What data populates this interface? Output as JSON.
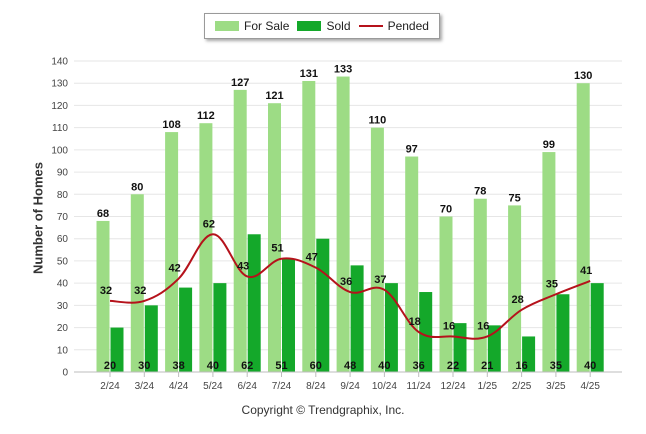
{
  "chart_data": {
    "type": "bar",
    "ylabel": "Number of Homes",
    "ylim": [
      0,
      140
    ],
    "yticks": [
      0,
      10,
      20,
      30,
      40,
      50,
      60,
      70,
      80,
      90,
      100,
      110,
      120,
      130,
      140
    ],
    "categories": [
      "2/24",
      "3/24",
      "4/24",
      "5/24",
      "6/24",
      "7/24",
      "8/24",
      "9/24",
      "10/24",
      "11/24",
      "12/24",
      "1/25",
      "2/25",
      "3/25",
      "4/25"
    ],
    "legend_position": "top-center",
    "grid": true,
    "series": [
      {
        "name": "For Sale",
        "type": "bar",
        "color": "#9ddc85",
        "values": [
          68,
          80,
          108,
          112,
          127,
          121,
          131,
          133,
          110,
          97,
          70,
          78,
          75,
          99,
          130
        ]
      },
      {
        "name": "Sold",
        "type": "bar",
        "color": "#14a82a",
        "values": [
          20,
          30,
          38,
          40,
          62,
          51,
          60,
          48,
          40,
          36,
          22,
          21,
          16,
          35,
          40
        ]
      },
      {
        "name": "Pended",
        "type": "line",
        "color": "#b5121b",
        "values": [
          32,
          32,
          42,
          62,
          43,
          51,
          47,
          36,
          37,
          18,
          16,
          16,
          28,
          35,
          41
        ]
      }
    ]
  },
  "footer": {
    "copyright": "Copyright © Trendgraphix, Inc."
  }
}
